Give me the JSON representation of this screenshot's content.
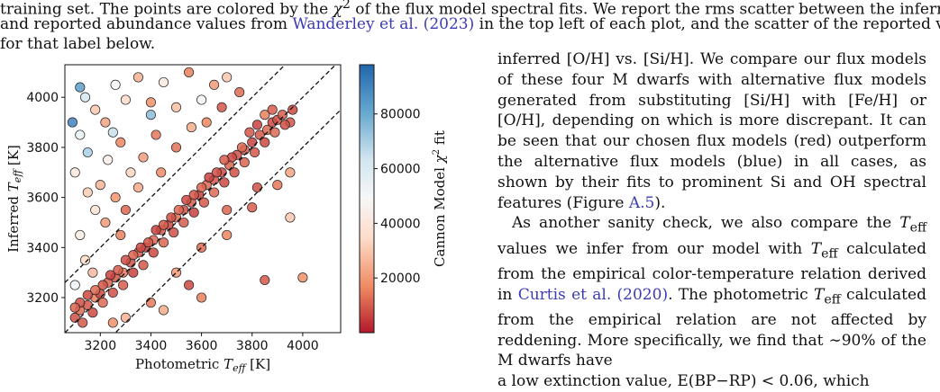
{
  "caption": {
    "line1_pre": "training set. The points are colored by the ",
    "line1_sym": "χ",
    "line1_post": " of the flux model spectral fits. We report the rms scatter between the inferred",
    "line2_pre": "and reported abundance values from ",
    "line2_cite": "Wanderley et al.",
    "line2_year": "2023",
    "line2_post": " in the top left of each plot, and the scatter of the reported values",
    "line3": "for that label below."
  },
  "right_text": {
    "p1_a": "inferred [O/H] vs. [Si/H]. We compare our flux models of these four M dwarfs with alternative flux models generated from substituting [Si/H] with [Fe/H] or [O/H], depending on which is more discrepant. It can be seen that our chosen flux models (red) outperform the alternative flux models (blue) in all cases, as shown by their fits to prominent Si and OH spectral features (Figure ",
    "p1_ref": "A.5",
    "p1_end": ").",
    "p2_a": "As another sanity check, we also compare the ",
    "p2_teff": "T",
    "p2_b": " values we infer from our model with ",
    "p2_c": " calculated from the empirical color-temperature relation derived in ",
    "p2_cite": "Curtis et al.",
    "p2_year": "2020",
    "p2_d": ". The photometric ",
    "p2_e": " calculated from the empirical relation are not affected by reddening. More specifically, we find that ∼90% of the M dwarfs have",
    "p2_f": "a low extinction value, E(BP−RP) < 0.06, which"
  },
  "colors": {
    "cite": "#3b3bb3",
    "cmap": [
      "#b2182b",
      "#ef8a62",
      "#fddbc7",
      "#f7f7f7",
      "#d1e5f0",
      "#67a9cf",
      "#2166ac"
    ]
  },
  "chart_data": {
    "type": "scatter",
    "title": "",
    "xlabel": "Photometric T_eff [K]",
    "ylabel": "Inferred T_eff [K]",
    "colorbar_label": "Cannon Model χ² fit",
    "xlim": [
      3060,
      4150
    ],
    "ylim": [
      3060,
      4130
    ],
    "xticks": [
      "3200",
      "3400",
      "3600",
      "3800",
      "4000"
    ],
    "yticks": [
      "3200",
      "3400",
      "3600",
      "3800",
      "4000"
    ],
    "colorbar_range": [
      0,
      98000
    ],
    "colorbar_ticks": [
      "20000",
      "40000",
      "60000",
      "80000"
    ],
    "reference_lines": [
      {
        "name": "one-to-one",
        "slope": 1,
        "offset": 0
      },
      {
        "name": "upper",
        "slope": 1,
        "offset": 200
      },
      {
        "name": "lower",
        "slope": 1,
        "offset": -200
      }
    ],
    "points": [
      [
        3100,
        3120,
        8000
      ],
      [
        3120,
        3150,
        12000
      ],
      [
        3150,
        3170,
        9000
      ],
      [
        3180,
        3200,
        15000
      ],
      [
        3200,
        3215,
        7000
      ],
      [
        3230,
        3260,
        11000
      ],
      [
        3260,
        3280,
        9000
      ],
      [
        3290,
        3300,
        14000
      ],
      [
        3320,
        3340,
        8000
      ],
      [
        3350,
        3380,
        10000
      ],
      [
        3380,
        3400,
        6000
      ],
      [
        3410,
        3430,
        12000
      ],
      [
        3440,
        3470,
        9000
      ],
      [
        3470,
        3490,
        7000
      ],
      [
        3500,
        3520,
        13000
      ],
      [
        3530,
        3550,
        8000
      ],
      [
        3560,
        3580,
        10000
      ],
      [
        3590,
        3610,
        6000
      ],
      [
        3620,
        3650,
        12000
      ],
      [
        3650,
        3670,
        9000
      ],
      [
        3680,
        3700,
        7000
      ],
      [
        3710,
        3730,
        11000
      ],
      [
        3740,
        3770,
        8000
      ],
      [
        3770,
        3790,
        10000
      ],
      [
        3800,
        3820,
        6000
      ],
      [
        3830,
        3850,
        9000
      ],
      [
        3860,
        3870,
        12000
      ],
      [
        3880,
        3900,
        7000
      ],
      [
        3900,
        3910,
        8000
      ],
      [
        3920,
        3930,
        10000
      ],
      [
        3950,
        3900,
        9000
      ],
      [
        3960,
        3950,
        7000
      ],
      [
        3850,
        3930,
        15000
      ],
      [
        3820,
        3890,
        6000
      ],
      [
        3790,
        3860,
        9000
      ],
      [
        3760,
        3800,
        12000
      ],
      [
        3720,
        3760,
        7000
      ],
      [
        3690,
        3750,
        10000
      ],
      [
        3660,
        3700,
        8000
      ],
      [
        3630,
        3680,
        6000
      ],
      [
        3600,
        3640,
        11000
      ],
      [
        3570,
        3610,
        9000
      ],
      [
        3540,
        3590,
        7000
      ],
      [
        3510,
        3550,
        12000
      ],
      [
        3480,
        3520,
        8000
      ],
      [
        3450,
        3490,
        10000
      ],
      [
        3420,
        3470,
        6000
      ],
      [
        3390,
        3420,
        9000
      ],
      [
        3360,
        3400,
        7000
      ],
      [
        3330,
        3370,
        11000
      ],
      [
        3300,
        3350,
        8000
      ],
      [
        3270,
        3310,
        10000
      ],
      [
        3240,
        3290,
        6000
      ],
      [
        3210,
        3250,
        9000
      ],
      [
        3180,
        3230,
        12000
      ],
      [
        3150,
        3210,
        7000
      ],
      [
        3120,
        3180,
        8000
      ],
      [
        3100,
        3160,
        11000
      ],
      [
        3130,
        3100,
        9000
      ],
      [
        3170,
        3140,
        7000
      ],
      [
        3210,
        3180,
        12000
      ],
      [
        3250,
        3220,
        8000
      ],
      [
        3290,
        3250,
        10000
      ],
      [
        3330,
        3300,
        6000
      ],
      [
        3370,
        3330,
        9000
      ],
      [
        3410,
        3380,
        7000
      ],
      [
        3450,
        3420,
        11000
      ],
      [
        3490,
        3460,
        8000
      ],
      [
        3530,
        3500,
        10000
      ],
      [
        3570,
        3540,
        6000
      ],
      [
        3610,
        3580,
        9000
      ],
      [
        3650,
        3620,
        12000
      ],
      [
        3690,
        3660,
        7000
      ],
      [
        3730,
        3700,
        8000
      ],
      [
        3770,
        3740,
        11000
      ],
      [
        3810,
        3780,
        9000
      ],
      [
        3850,
        3820,
        7000
      ],
      [
        3890,
        3860,
        12000
      ],
      [
        3930,
        3890,
        8000
      ],
      [
        3880,
        3950,
        10000
      ],
      [
        3100,
        3700,
        40000
      ],
      [
        3120,
        3850,
        55000
      ],
      [
        3140,
        4000,
        62000
      ],
      [
        3180,
        3950,
        30000
      ],
      [
        3220,
        3900,
        22000
      ],
      [
        3260,
        4050,
        48000
      ],
      [
        3300,
        3990,
        35000
      ],
      [
        3350,
        4080,
        25000
      ],
      [
        3400,
        3980,
        18000
      ],
      [
        3450,
        4060,
        42000
      ],
      [
        3500,
        3960,
        28000
      ],
      [
        3550,
        4100,
        15000
      ],
      [
        3600,
        3990,
        52000
      ],
      [
        3650,
        4050,
        20000
      ],
      [
        3700,
        4080,
        30000
      ],
      [
        3750,
        4020,
        12000
      ],
      [
        3200,
        3650,
        26000
      ],
      [
        3230,
        3750,
        45000
      ],
      [
        3280,
        3820,
        16000
      ],
      [
        3320,
        3700,
        33000
      ],
      [
        3370,
        3760,
        21000
      ],
      [
        3420,
        3850,
        14000
      ],
      [
        3090,
        3900,
        90000
      ],
      [
        3150,
        3780,
        70000
      ],
      [
        3120,
        4040,
        83000
      ],
      [
        3250,
        3860,
        65000
      ],
      [
        3400,
        3930,
        75000
      ],
      [
        3180,
        3550,
        38000
      ],
      [
        3260,
        3600,
        19000
      ],
      [
        3300,
        3550,
        11000
      ],
      [
        3350,
        3640,
        23000
      ],
      [
        3440,
        3700,
        17000
      ],
      [
        3500,
        3800,
        13000
      ],
      [
        3560,
        3880,
        24000
      ],
      [
        3620,
        3900,
        16000
      ],
      [
        3680,
        3960,
        9000
      ],
      [
        3120,
        3450,
        43000
      ],
      [
        3140,
        3350,
        35000
      ],
      [
        3170,
        3300,
        27000
      ],
      [
        3100,
        3250,
        52000
      ],
      [
        3250,
        3100,
        18000
      ],
      [
        3300,
        3120,
        25000
      ],
      [
        3400,
        3180,
        14000
      ],
      [
        3500,
        3300,
        20000
      ],
      [
        3600,
        3400,
        12000
      ],
      [
        3700,
        3450,
        16000
      ],
      [
        3800,
        3560,
        10000
      ],
      [
        3900,
        3650,
        14000
      ],
      [
        3950,
        3700,
        22000
      ],
      [
        4000,
        3280,
        18000
      ],
      [
        3850,
        3270,
        9000
      ],
      [
        3600,
        3200,
        15000
      ],
      [
        3450,
        3150,
        24000
      ],
      [
        3550,
        3250,
        7000
      ],
      [
        3700,
        3550,
        11000
      ],
      [
        3820,
        3640,
        8000
      ],
      [
        3150,
        3620,
        31000
      ],
      [
        3220,
        3500,
        20000
      ],
      [
        3280,
        3450,
        15000
      ],
      [
        3950,
        3520,
        30000
      ]
    ]
  }
}
